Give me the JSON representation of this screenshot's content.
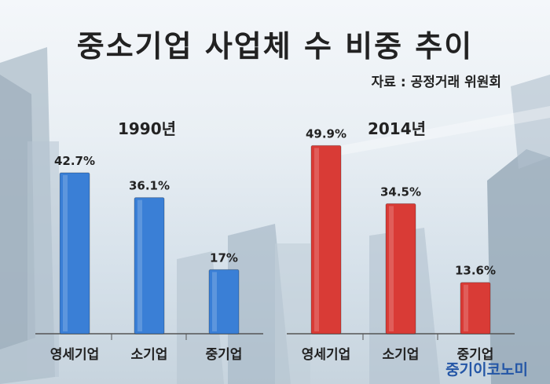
{
  "title": "중소기업 사업체 수 비중 추이",
  "source": "자료 : 공정거래 위원회",
  "watermark": "중기이코노미",
  "colors": {
    "left_bars": "#3a7fd6",
    "right_bars": "#d93b36"
  },
  "chart_data": [
    {
      "type": "bar",
      "title": "1990년",
      "categories": [
        "영세기업",
        "소기업",
        "중기업"
      ],
      "values": [
        42.7,
        36.1,
        17
      ],
      "data_labels": [
        "42.7%",
        "36.1%",
        "17%"
      ],
      "ylim": [
        0,
        55
      ],
      "color": "#3a7fd6"
    },
    {
      "type": "bar",
      "title": "2014년",
      "categories": [
        "영세기업",
        "소기업",
        "중기업"
      ],
      "values": [
        49.9,
        34.5,
        13.6
      ],
      "data_labels": [
        "49.9%",
        "34.5%",
        "13.6%"
      ],
      "ylim": [
        0,
        55
      ],
      "color": "#d93b36"
    }
  ]
}
